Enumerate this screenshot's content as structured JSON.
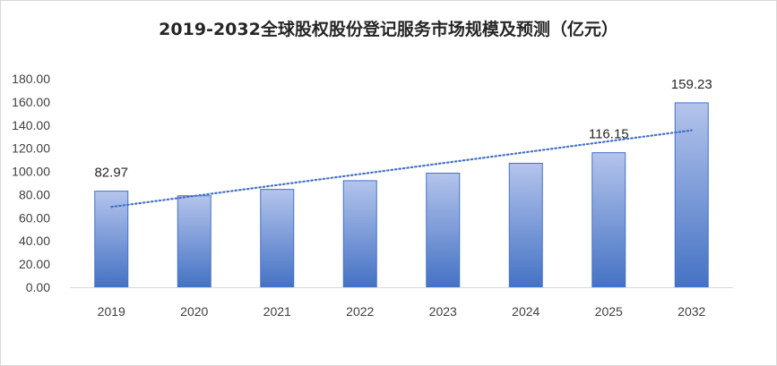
{
  "chart_data": {
    "type": "bar",
    "title": "2019-2032全球股权股份登记服务市场规模及预测（亿元）",
    "categories": [
      "2019",
      "2020",
      "2021",
      "2022",
      "2023",
      "2024",
      "2025",
      "2032"
    ],
    "values": [
      82.97,
      79.0,
      84.5,
      92.0,
      98.5,
      107.0,
      116.15,
      159.23
    ],
    "data_labels": [
      "82.97",
      null,
      null,
      null,
      null,
      null,
      "116.15",
      "159.23"
    ],
    "ylim": [
      0,
      180
    ],
    "yticks": [
      "0.00",
      "20.00",
      "40.00",
      "60.00",
      "80.00",
      "100.00",
      "120.00",
      "140.00",
      "160.00",
      "180.00"
    ],
    "trendline": "linear",
    "grid": false,
    "bar_color_top": "#b4c4ec",
    "bar_color_bottom": "#4472c4",
    "bar_border": "#4472c4",
    "trend_color": "#4472c4"
  }
}
